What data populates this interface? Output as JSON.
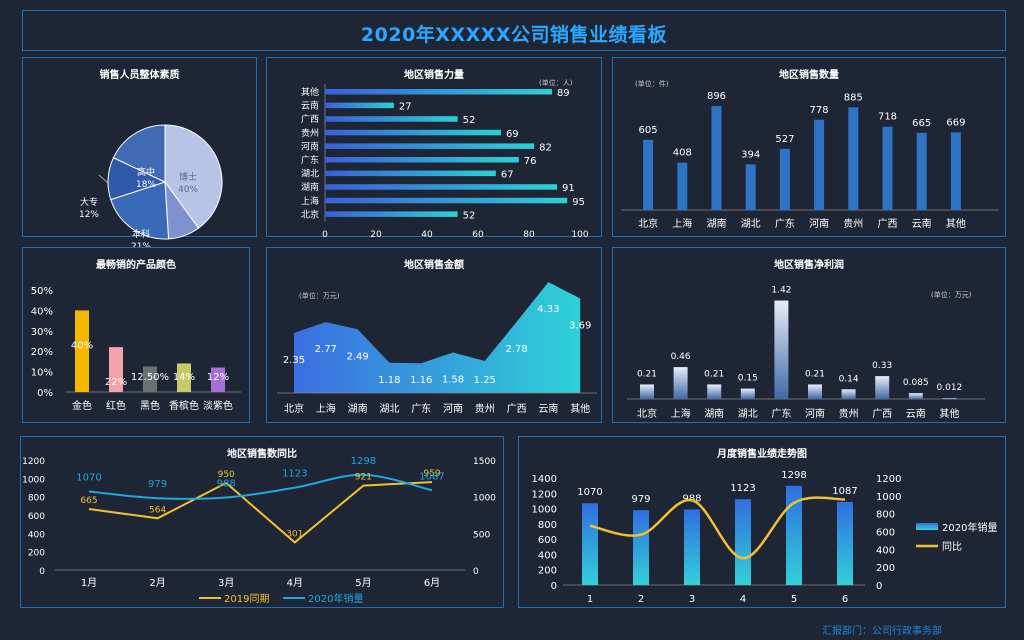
{
  "page_title": "2020年XXXXX公司销售业绩看板",
  "footer": "汇报部门：公司行政事务部",
  "colors": {
    "accent": "#2aa7ff",
    "panel_border": "#1f6fb5",
    "bg": "#1e2635",
    "bar_blue": "#2e73c4",
    "gold": "#f2c12e",
    "teal": "#2ec2d6"
  },
  "chart_data": [
    {
      "id": "staff",
      "type": "pie",
      "title": "销售人员整体素质",
      "labels": [
        "博士",
        "研究生",
        "本科",
        "大专",
        "高中"
      ],
      "values": [
        40,
        9,
        21,
        12,
        18
      ],
      "value_labels": [
        "40%",
        "9%",
        "21%",
        "12%",
        "18%"
      ],
      "colors": [
        "#b8c4e6",
        "#7e92cf",
        "#3a69b8",
        "#2e5aa8",
        "#4169b4"
      ]
    },
    {
      "id": "force",
      "type": "bar",
      "orientation": "horizontal",
      "title": "地区销售力量",
      "unit_note": "(单位：人)",
      "categories": [
        "北京",
        "上海",
        "湖南",
        "湖北",
        "广东",
        "河南",
        "贵州",
        "广西",
        "云南",
        "其他"
      ],
      "values": [
        52,
        95,
        91,
        67,
        76,
        82,
        69,
        52,
        27,
        89
      ],
      "xlim": [
        0,
        100
      ],
      "xticks": [
        "0",
        "20",
        "40",
        "60",
        "80",
        "100"
      ]
    },
    {
      "id": "qty",
      "type": "bar",
      "title": "地区销售数量",
      "unit_note": "(单位：件)",
      "categories": [
        "北京",
        "上海",
        "湖南",
        "湖北",
        "广东",
        "河南",
        "贵州",
        "广西",
        "云南",
        "其他"
      ],
      "values": [
        605,
        408,
        896,
        394,
        527,
        778,
        885,
        718,
        665,
        669
      ],
      "ylim": [
        0,
        1000
      ]
    },
    {
      "id": "color",
      "type": "bar",
      "title": "最畅销的产品颜色",
      "categories": [
        "金色",
        "红色",
        "黑色",
        "香槟色",
        "淡紫色"
      ],
      "values": [
        40,
        22,
        12.5,
        14,
        12
      ],
      "value_labels": [
        "40%",
        "22%",
        "12.50%",
        "14%",
        "12%"
      ],
      "bar_colors": [
        "#f5b800",
        "#f4a3ad",
        "#6b7070",
        "#c9c86a",
        "#a56fd6"
      ],
      "ylim": [
        0,
        50
      ],
      "yticks": [
        "0%",
        "10%",
        "20%",
        "30%",
        "40%",
        "50%"
      ]
    },
    {
      "id": "amount",
      "type": "area",
      "title": "地区销售金额",
      "unit_note": "(单位：万元)",
      "categories": [
        "北京",
        "上海",
        "湖南",
        "湖北",
        "广东",
        "河南",
        "贵州",
        "广西",
        "云南",
        "其他"
      ],
      "values": [
        2.35,
        2.77,
        2.49,
        1.18,
        1.16,
        1.58,
        1.25,
        2.78,
        4.33,
        3.69
      ],
      "ylim": [
        0,
        5
      ]
    },
    {
      "id": "profit",
      "type": "bar",
      "title": "地区销售净利润",
      "unit_note": "(单位：万元)",
      "categories": [
        "北京",
        "上海",
        "湖南",
        "湖北",
        "广东",
        "河南",
        "贵州",
        "广西",
        "云南",
        "其他"
      ],
      "values": [
        0.21,
        0.46,
        0.21,
        0.15,
        1.42,
        0.21,
        0.14,
        0.33,
        0.085,
        0.012
      ],
      "ylim": [
        0,
        1.5
      ]
    },
    {
      "id": "yoy",
      "type": "line",
      "title": "地区销售数同比",
      "categories": [
        "1月",
        "2月",
        "3月",
        "4月",
        "5月",
        "6月"
      ],
      "series": [
        {
          "name": "2019同期",
          "values": [
            665,
            564,
            950,
            301,
            921,
            959
          ],
          "color": "#f2c12e",
          "axis": "left"
        },
        {
          "name": "2020年销量",
          "values": [
            1070,
            979,
            988,
            1123,
            1298,
            1087
          ],
          "color": "#1ea7e0",
          "axis": "right"
        }
      ],
      "ylim_left": [
        0,
        1200
      ],
      "yticks_left": [
        "0",
        "200",
        "400",
        "600",
        "800",
        "1000",
        "1200"
      ],
      "ylim_right": [
        0,
        1500
      ],
      "yticks_right": [
        "0",
        "500",
        "1000",
        "1500"
      ]
    },
    {
      "id": "trend",
      "type": "bar",
      "title": "月度销售业绩走势图",
      "categories": [
        "1",
        "2",
        "3",
        "4",
        "5",
        "6"
      ],
      "series": [
        {
          "name": "2020年销量",
          "values": [
            1070,
            979,
            988,
            1123,
            1298,
            1087
          ],
          "kind": "bar",
          "axis": "left"
        },
        {
          "name": "同比",
          "values": [
            665,
            564,
            950,
            301,
            921,
            959
          ],
          "kind": "line",
          "axis": "right",
          "color": "#f2c12e"
        }
      ],
      "ylim_left": [
        0,
        1400
      ],
      "yticks_left": [
        "0",
        "200",
        "400",
        "600",
        "800",
        "1000",
        "1200",
        "1400"
      ],
      "ylim_right": [
        0,
        1200
      ],
      "yticks_right": [
        "0",
        "200",
        "400",
        "600",
        "800",
        "1000",
        "1200"
      ]
    }
  ]
}
